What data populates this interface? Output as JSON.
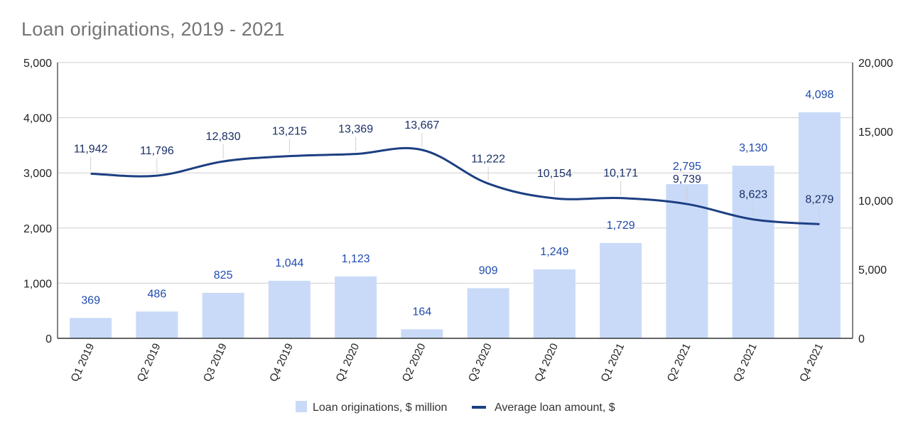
{
  "chart_data": {
    "type": "bar",
    "title": "Loan originations, 2019 - 2021",
    "categories": [
      "Q1 2019",
      "Q2 2019",
      "Q3 2019",
      "Q4 2019",
      "Q1 2020",
      "Q2 2020",
      "Q3 2020",
      "Q4 2020",
      "Q1 2021",
      "Q2 2021",
      "Q3 2021",
      "Q4 2021"
    ],
    "series": [
      {
        "name": "Loan originations, $ million",
        "type": "bar",
        "axis": "left",
        "values": [
          369,
          486,
          825,
          1044,
          1123,
          164,
          909,
          1249,
          1729,
          2795,
          3130,
          4098
        ],
        "labels": [
          "369",
          "486",
          "825",
          "1,044",
          "1,123",
          "164",
          "909",
          "1,249",
          "1,729",
          "2,795",
          "3,130",
          "4,098"
        ],
        "color": "#c9daf8"
      },
      {
        "name": "Average loan amount, $",
        "type": "line",
        "axis": "right",
        "values": [
          11942,
          11796,
          12830,
          13215,
          13369,
          13667,
          11222,
          10154,
          10171,
          9739,
          8623,
          8279
        ],
        "labels": [
          "11,942",
          "11,796",
          "12,830",
          "13,215",
          "13,369",
          "13,667",
          "11,222",
          "10,154",
          "10,171",
          "9,739",
          "8,623",
          "8,279"
        ],
        "color": "#1c3f82"
      }
    ],
    "left_axis": {
      "ylim": [
        0,
        5000
      ],
      "ticks": [
        0,
        1000,
        2000,
        3000,
        4000,
        5000
      ],
      "tick_labels": [
        "0",
        "1,000",
        "2,000",
        "3,000",
        "4,000",
        "5,000"
      ]
    },
    "right_axis": {
      "ylim": [
        0,
        20000
      ],
      "ticks": [
        0,
        5000,
        10000,
        15000,
        20000
      ],
      "tick_labels": [
        "0",
        "5,000",
        "10,000",
        "15,000",
        "20,000"
      ]
    },
    "xlabel": "",
    "ylabel": "",
    "grid": true,
    "legend_position": "bottom-center"
  }
}
